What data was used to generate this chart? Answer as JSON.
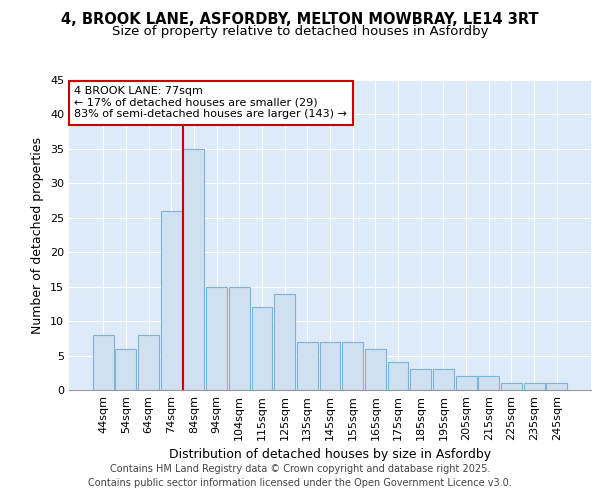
{
  "title_line1": "4, BROOK LANE, ASFORDBY, MELTON MOWBRAY, LE14 3RT",
  "title_line2": "Size of property relative to detached houses in Asfordby",
  "xlabel": "Distribution of detached houses by size in Asfordby",
  "ylabel": "Number of detached properties",
  "categories": [
    "44sqm",
    "54sqm",
    "64sqm",
    "74sqm",
    "84sqm",
    "94sqm",
    "104sqm",
    "115sqm",
    "125sqm",
    "135sqm",
    "145sqm",
    "155sqm",
    "165sqm",
    "175sqm",
    "185sqm",
    "195sqm",
    "205sqm",
    "215sqm",
    "225sqm",
    "235sqm",
    "245sqm"
  ],
  "values": [
    8,
    6,
    8,
    26,
    35,
    15,
    15,
    12,
    14,
    7,
    7,
    7,
    6,
    4,
    3,
    3,
    2,
    2,
    1,
    1,
    1
  ],
  "bar_color": "#cfe0f0",
  "bar_edge_color": "#7fb3d8",
  "background_color": "#ddeaf7",
  "grid_color": "#ffffff",
  "annotation_box_text": "4 BROOK LANE: 77sqm\n← 17% of detached houses are smaller (29)\n83% of semi-detached houses are larger (143) →",
  "annotation_box_color": "#ffffff",
  "annotation_box_edge": "#cc0000",
  "vline_x": 3.5,
  "vline_color": "#cc0000",
  "ylim": [
    0,
    45
  ],
  "yticks": [
    0,
    5,
    10,
    15,
    20,
    25,
    30,
    35,
    40,
    45
  ],
  "footer_line1": "Contains HM Land Registry data © Crown copyright and database right 2025.",
  "footer_line2": "Contains public sector information licensed under the Open Government Licence v3.0.",
  "title_fontsize": 10.5,
  "subtitle_fontsize": 9.5,
  "axis_label_fontsize": 9,
  "tick_fontsize": 8,
  "annotation_fontsize": 8,
  "footer_fontsize": 7
}
